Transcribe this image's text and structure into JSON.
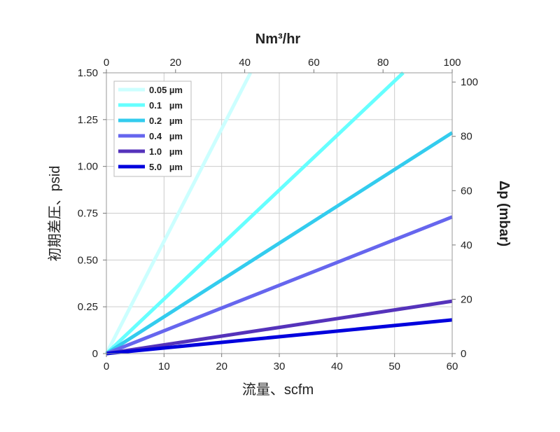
{
  "chart_data": {
    "type": "line",
    "xlabel": "流量、scfm",
    "ylabel": "初期差圧、psid",
    "x2label": "Nm³/hr",
    "y2label": "Δp (mbar)",
    "xlim": [
      0,
      60
    ],
    "ylim": [
      0,
      1.5
    ],
    "x2lim": [
      0,
      100
    ],
    "y2lim": [
      0,
      103.4
    ],
    "x_ticks": [
      "0",
      "10",
      "20",
      "30",
      "40",
      "50",
      "60"
    ],
    "y_ticks": [
      "0",
      "0.25",
      "0.50",
      "0.75",
      "1.00",
      "1.25",
      "1.50"
    ],
    "x2_ticks": [
      "0",
      "20",
      "40",
      "60",
      "80",
      "100"
    ],
    "y2_ticks": [
      "0",
      "20",
      "40",
      "60",
      "80",
      "100"
    ],
    "grid": true,
    "legend_position": "top-left",
    "series": [
      {
        "name": "0.05 µm",
        "color": "#ccffff",
        "x": [
          0,
          25
        ],
        "y": [
          0,
          1.5
        ]
      },
      {
        "name": "0.1   µm",
        "color": "#66ffff",
        "x": [
          0,
          51.5
        ],
        "y": [
          0,
          1.5
        ]
      },
      {
        "name": "0.2   µm",
        "color": "#33ccee",
        "x": [
          0,
          60
        ],
        "y": [
          0,
          1.18
        ]
      },
      {
        "name": "0.4   µm",
        "color": "#6666ee",
        "x": [
          0,
          60
        ],
        "y": [
          0,
          0.73
        ]
      },
      {
        "name": "1.0   µm",
        "color": "#5533bb",
        "x": [
          0,
          60
        ],
        "y": [
          0,
          0.28
        ]
      },
      {
        "name": "5.0   µm",
        "color": "#0000dd",
        "x": [
          0,
          60
        ],
        "y": [
          0,
          0.18
        ]
      }
    ]
  }
}
